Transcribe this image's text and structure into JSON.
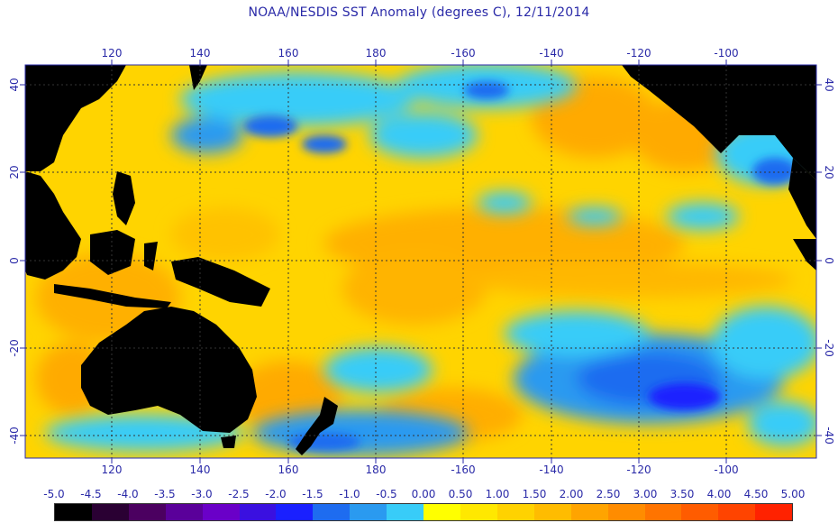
{
  "title": "NOAA/NESDIS SST Anomaly (degrees C), 12/11/2014",
  "map": {
    "lon_ticks": [
      "120",
      "140",
      "160",
      "180",
      "-160",
      "-140",
      "-120",
      "-100"
    ],
    "lat_ticks": [
      "40",
      "20",
      "0",
      "-20",
      "-40"
    ],
    "land_color": "#000000",
    "grid_color": "#333333"
  },
  "colorbar": {
    "labels": [
      "-5.0",
      "-4.5",
      "-4.0",
      "-3.5",
      "-3.0",
      "-2.5",
      "-2.0",
      "-1.5",
      "-1.0",
      "-0.5",
      "0.00",
      "0.50",
      "1.00",
      "1.50",
      "2.00",
      "2.50",
      "3.00",
      "3.50",
      "4.00",
      "4.50",
      "5.00"
    ],
    "colors": [
      "#000000",
      "#2a0033",
      "#4b0060",
      "#5a009a",
      "#6a00c8",
      "#3a10e0",
      "#1a20ff",
      "#1e6cf0",
      "#2a9af0",
      "#38ccf8",
      "#ffff00",
      "#ffe800",
      "#ffd200",
      "#ffbc00",
      "#ffa400",
      "#ff8c00",
      "#ff7400",
      "#ff5c00",
      "#ff4400",
      "#ff2200"
    ]
  }
}
